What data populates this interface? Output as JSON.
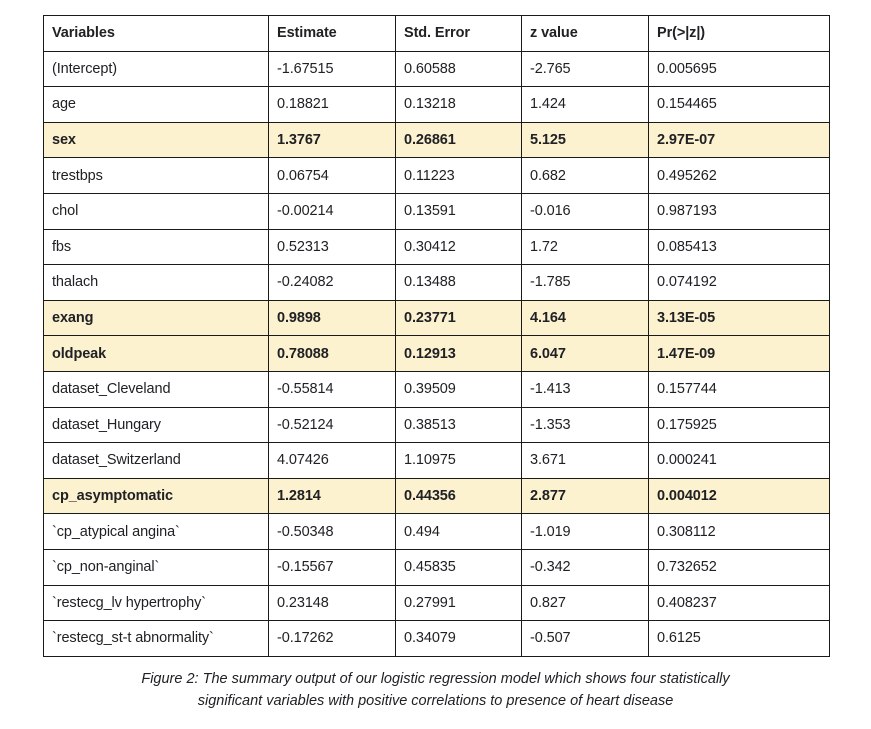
{
  "table": {
    "headers": [
      "Variables",
      "Estimate",
      "Std. Error",
      "z value",
      "Pr(>|z|)"
    ],
    "rows": [
      {
        "cells": [
          "(Intercept)",
          "-1.67515",
          "0.60588",
          "-2.765",
          "0.005695"
        ],
        "highlight": false
      },
      {
        "cells": [
          "age",
          "0.18821",
          "0.13218",
          "1.424",
          "0.154465"
        ],
        "highlight": false
      },
      {
        "cells": [
          "sex",
          "1.3767",
          "0.26861",
          "5.125",
          "2.97E-07"
        ],
        "highlight": true
      },
      {
        "cells": [
          "trestbps",
          "0.06754",
          "0.11223",
          "0.682",
          "0.495262"
        ],
        "highlight": false
      },
      {
        "cells": [
          "chol",
          "-0.00214",
          "0.13591",
          "-0.016",
          "0.987193"
        ],
        "highlight": false
      },
      {
        "cells": [
          "fbs",
          "0.52313",
          "0.30412",
          "1.72",
          "0.085413"
        ],
        "highlight": false
      },
      {
        "cells": [
          "thalach",
          "-0.24082",
          "0.13488",
          "-1.785",
          "0.074192"
        ],
        "highlight": false
      },
      {
        "cells": [
          "exang",
          "0.9898",
          "0.23771",
          "4.164",
          "3.13E-05"
        ],
        "highlight": true
      },
      {
        "cells": [
          "oldpeak",
          "0.78088",
          "0.12913",
          "6.047",
          "1.47E-09"
        ],
        "highlight": true
      },
      {
        "cells": [
          "dataset_Cleveland",
          "-0.55814",
          "0.39509",
          "-1.413",
          "0.157744"
        ],
        "highlight": false
      },
      {
        "cells": [
          "dataset_Hungary",
          "-0.52124",
          "0.38513",
          "-1.353",
          "0.175925"
        ],
        "highlight": false
      },
      {
        "cells": [
          "dataset_Switzerland",
          "4.07426",
          "1.10975",
          "3.671",
          "0.000241"
        ],
        "highlight": false
      },
      {
        "cells": [
          "cp_asymptomatic",
          "1.2814",
          "0.44356",
          "2.877",
          "0.004012"
        ],
        "highlight": true
      },
      {
        "cells": [
          "`cp_atypical angina`",
          "-0.50348",
          "0.494",
          "-1.019",
          "0.308112"
        ],
        "highlight": false
      },
      {
        "cells": [
          "`cp_non-anginal`",
          "-0.15567",
          "0.45835",
          "-0.342",
          "0.732652"
        ],
        "highlight": false
      },
      {
        "cells": [
          "`restecg_lv hypertrophy`",
          "0.23148",
          "0.27991",
          "0.827",
          "0.408237"
        ],
        "highlight": false
      },
      {
        "cells": [
          "`restecg_st-t abnormality`",
          "-0.17262",
          "0.34079",
          "-0.507",
          "0.6125"
        ],
        "highlight": false
      }
    ]
  },
  "caption": {
    "line1": "Figure 2: The summary output of our logistic regression model which shows four statistically",
    "line2": "significant variables with positive correlations to presence of heart disease"
  },
  "colors": {
    "highlight": "#fdf2d0",
    "border": "#1a1a1a",
    "text": "#202124"
  }
}
